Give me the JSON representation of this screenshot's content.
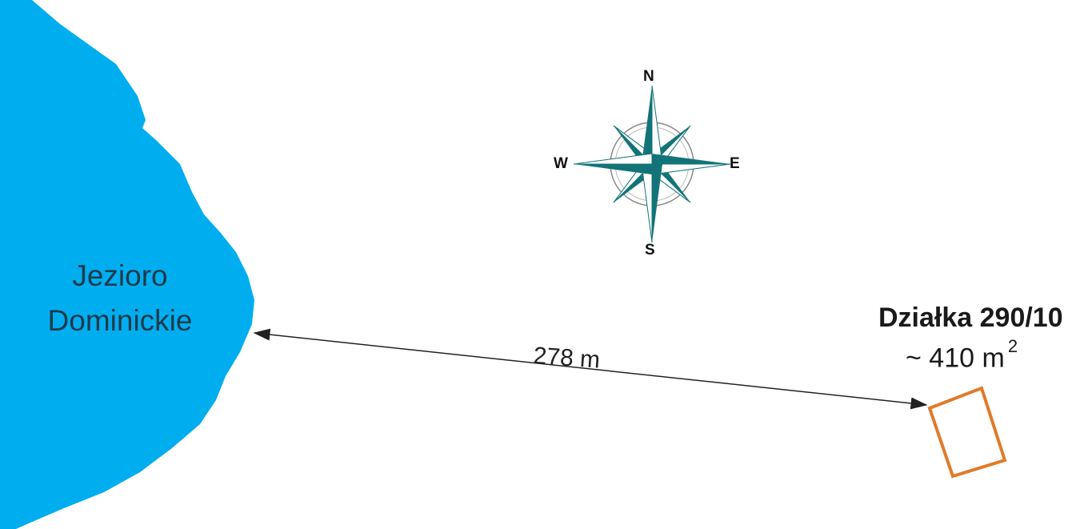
{
  "lake": {
    "name_line1": "Jezioro",
    "name_line2": "Dominickie",
    "fill_color": "#00AEEF"
  },
  "distance": {
    "label": "278 m"
  },
  "plot": {
    "title": "Działka 290/10",
    "area_value": "~ 410 m",
    "area_superscript": "2",
    "outline_color": "#E07B2A"
  },
  "compass": {
    "north": "N",
    "south": "S",
    "west": "W",
    "east": "E",
    "accent_color": "#127478"
  }
}
